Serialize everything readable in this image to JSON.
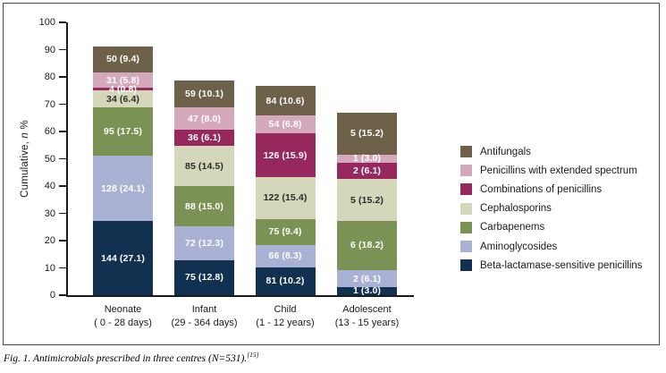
{
  "figure": {
    "caption_text": "Fig. 1. Antimicrobials prescribed in three centres (N=531).",
    "caption_ref": "[15]"
  },
  "chart_data": {
    "type": "bar",
    "stacked": true,
    "grid": false,
    "legend_position": "right",
    "ylabel_pre": "Cumulative, ",
    "ylabel_italic": "n",
    "ylabel_post": " %",
    "ylim": [
      0,
      100
    ],
    "yticks": [
      0,
      10,
      20,
      30,
      40,
      50,
      60,
      70,
      80,
      90,
      100
    ],
    "categories": [
      {
        "name": "Neonate",
        "range": "( 0 - 28 days)"
      },
      {
        "name": "Infant",
        "range": "(29 - 364 days)"
      },
      {
        "name": "Child",
        "range": "(1 - 12 years)"
      },
      {
        "name": "Adolescent",
        "range": "(13 - 15 years)"
      }
    ],
    "series_bottom_to_top": [
      {
        "key": "beta-lactamase-sensitive-penicillins",
        "name": "Beta-lactamase-sensitive penicillins",
        "color": "#12304f",
        "label_color": "#ffffff",
        "counts": [
          144,
          75,
          81,
          1
        ],
        "percents": [
          27.1,
          12.8,
          10.2,
          3.0
        ],
        "labels": [
          "144 (27.1)",
          "75 (12.8)",
          "81 (10.2)",
          "1 (3.0)"
        ]
      },
      {
        "key": "aminoglycosides",
        "name": "Aminoglycosides",
        "color": "#a9b2d4",
        "label_color": "#ffffff",
        "counts": [
          128,
          72,
          66,
          2
        ],
        "percents": [
          24.1,
          12.3,
          8.3,
          6.1
        ],
        "labels": [
          "128 (24.1)",
          "72 (12.3)",
          "66 (8.3)",
          "2 (6.1)"
        ]
      },
      {
        "key": "carbapenems",
        "name": "Carbapenems",
        "color": "#7a9254",
        "label_color": "#ffffff",
        "counts": [
          95,
          88,
          75,
          6
        ],
        "percents": [
          17.5,
          15.0,
          9.4,
          18.2
        ],
        "labels": [
          "95 (17.5)",
          "88 (15.0)",
          "75 (9.4)",
          "6 (18.2)"
        ]
      },
      {
        "key": "cephalosporins",
        "name": "Cephalosporins",
        "color": "#d5d7ba",
        "label_color": "#2b2b2b",
        "counts": [
          34,
          85,
          122,
          5
        ],
        "percents": [
          6.4,
          14.5,
          15.4,
          15.2
        ],
        "labels": [
          "34 (6.4)",
          "85 (14.5)",
          "122 (15.4)",
          "5 (15.2)"
        ]
      },
      {
        "key": "combinations-of-penicillins",
        "name": "Combinations of penicillins",
        "color": "#96285e",
        "label_color": "#ffffff",
        "counts": [
          4,
          36,
          126,
          2
        ],
        "percents": [
          0.8,
          6.1,
          15.9,
          6.1
        ],
        "labels": [
          "4 (0.8)",
          "36 (6.1)",
          "126 (15.9)",
          "2 (6.1)"
        ]
      },
      {
        "key": "penicillins-with-extended-spectrum",
        "name": "Penicillins with extended spectrum",
        "color": "#d5a9bc",
        "label_color": "#ffffff",
        "counts": [
          31,
          47,
          54,
          1
        ],
        "percents": [
          5.8,
          8.0,
          6.8,
          3.0
        ],
        "labels": [
          "31 (5.8)",
          "47 (8.0)",
          "54 (6.8)",
          "1 (3.0)"
        ]
      },
      {
        "key": "antifungals",
        "name": "Antifungals",
        "color": "#6d6149",
        "label_color": "#ffffff",
        "counts": [
          50,
          59,
          84,
          5
        ],
        "percents": [
          9.4,
          10.1,
          10.6,
          15.2
        ],
        "labels": [
          "50 (9.4)",
          "59 (10.1)",
          "84 (10.6)",
          "5 (15.2)"
        ]
      }
    ]
  }
}
